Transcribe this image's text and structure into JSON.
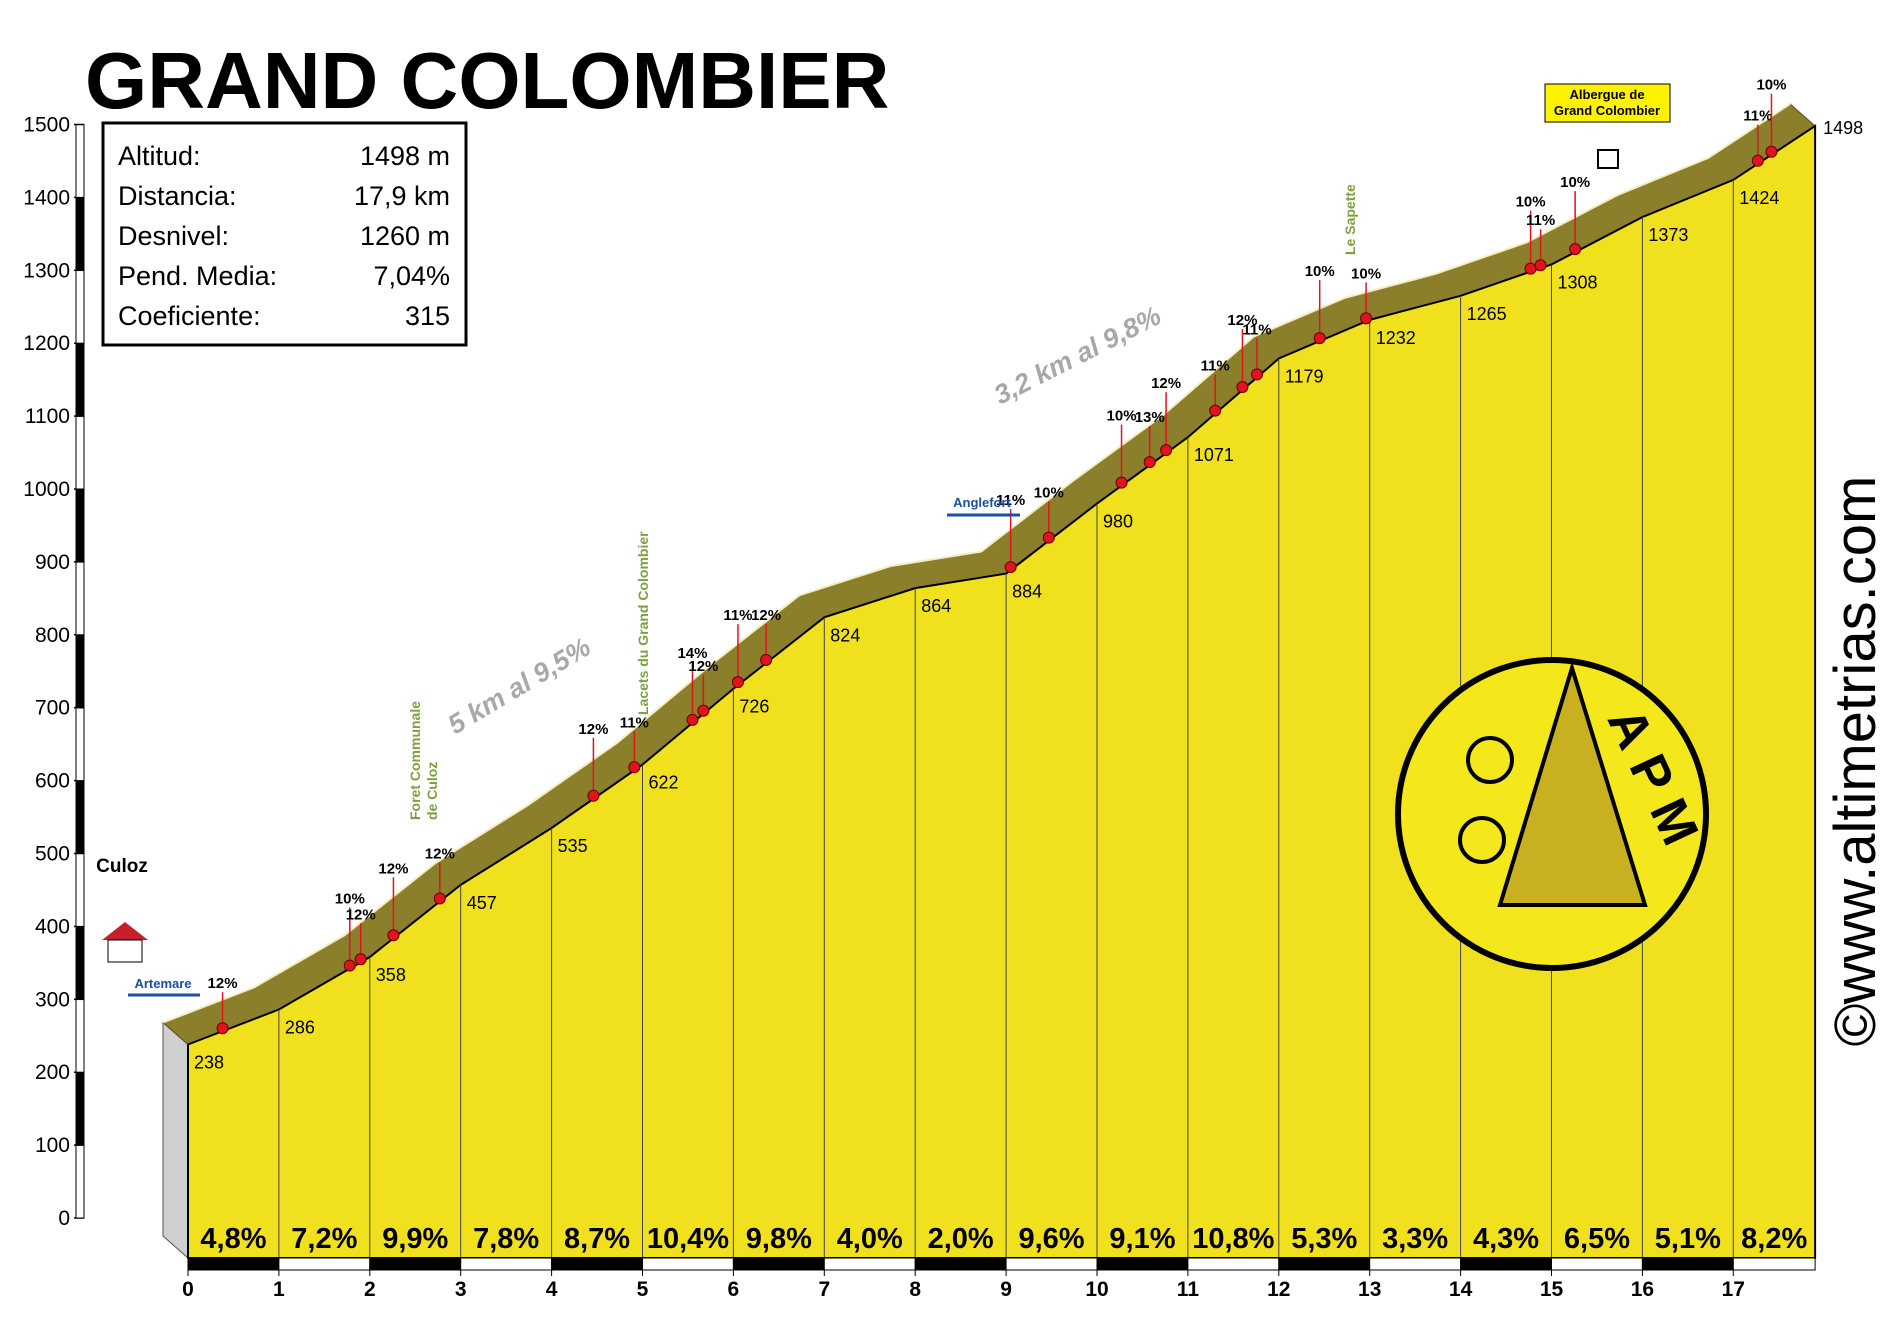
{
  "chart_data": {
    "type": "profile",
    "title": "GRAND COLOMBIER",
    "info": [
      [
        "Altitud:",
        "1498 m"
      ],
      [
        "Distancia:",
        "17,9 km"
      ],
      [
        "Desnivel:",
        "1260 m"
      ],
      [
        "Pend. Media:",
        "7,04%"
      ],
      [
        "Coeficiente:",
        "315"
      ]
    ],
    "x": [
      0,
      1,
      2,
      3,
      4,
      5,
      6,
      7,
      8,
      9,
      10,
      11,
      12,
      13,
      14,
      15,
      16,
      17,
      17.9
    ],
    "values": [
      238,
      286,
      358,
      457,
      535,
      622,
      726,
      824,
      864,
      884,
      980,
      1071,
      1179,
      1232,
      1265,
      1308,
      1373,
      1424,
      1498
    ],
    "segments": {
      "values": [
        4.8,
        7.2,
        9.9,
        7.8,
        8.7,
        10.4,
        9.8,
        4.0,
        2.0,
        9.6,
        9.1,
        10.8,
        5.3,
        3.3,
        4.3,
        6.5,
        5.1,
        8.2
      ],
      "value_labels": [
        "4,8%",
        "7,2%",
        "9,9%",
        "7,8%",
        "8,7%",
        "10,4%",
        "9,8%",
        "4,0%",
        "2,0%",
        "9,6%",
        "9,1%",
        "10,8%",
        "5,3%",
        "3,3%",
        "4,3%",
        "6,5%",
        "5,1%",
        "8,2%"
      ]
    },
    "steep": [
      {
        "x": 0.38,
        "value": 12,
        "label": "12%"
      },
      {
        "x": 1.78,
        "value": 10,
        "label": "10%"
      },
      {
        "x": 1.9,
        "value": 12,
        "label": "12%"
      },
      {
        "x": 2.26,
        "value": 12,
        "label": "12%"
      },
      {
        "x": 2.77,
        "value": 12,
        "label": "12%"
      },
      {
        "x": 4.46,
        "value": 12,
        "label": "12%"
      },
      {
        "x": 4.91,
        "value": 11,
        "label": "11%"
      },
      {
        "x": 5.55,
        "value": 14,
        "label": "14%"
      },
      {
        "x": 5.67,
        "value": 12,
        "label": "12%"
      },
      {
        "x": 6.05,
        "value": 11,
        "label": "11%"
      },
      {
        "x": 6.36,
        "value": 12,
        "label": "12%"
      },
      {
        "x": 9.05,
        "value": 11,
        "label": "11%"
      },
      {
        "x": 9.47,
        "value": 10,
        "label": "10%"
      },
      {
        "x": 10.27,
        "value": 10,
        "label": "10%"
      },
      {
        "x": 10.58,
        "value": 13,
        "label": "13%"
      },
      {
        "x": 10.76,
        "value": 12,
        "label": "12%"
      },
      {
        "x": 11.3,
        "value": 11,
        "label": "11%"
      },
      {
        "x": 11.6,
        "value": 12,
        "label": "12%"
      },
      {
        "x": 11.76,
        "value": 11,
        "label": "11%"
      },
      {
        "x": 12.45,
        "value": 10,
        "label": "10%"
      },
      {
        "x": 12.96,
        "value": 10,
        "label": "10%"
      },
      {
        "x": 14.77,
        "value": 10,
        "label": "10%"
      },
      {
        "x": 14.88,
        "value": 11,
        "label": "11%"
      },
      {
        "x": 15.26,
        "value": 10,
        "label": "10%"
      },
      {
        "x": 17.27,
        "value": 11,
        "label": "11%"
      },
      {
        "x": 17.42,
        "value": 10,
        "label": "10%"
      }
    ],
    "climbs": [
      "5 km al 9,5%",
      "3,2 km al 9,8%"
    ],
    "places": [
      "Culoz",
      "Artemare",
      "Anglefort"
    ],
    "refuge": [
      "Albergue de",
      "Grand Colombier"
    ],
    "sites": [
      [
        "Foret Communale",
        "de Culoz"
      ],
      [
        "Lacets du Grand Colombier"
      ],
      [
        "Le Sapette"
      ]
    ],
    "watermark": "www.altimetrias.com",
    "copyright": "©",
    "logo": "APM",
    "xlim": [
      0,
      17.9
    ],
    "xticks": [
      0,
      1,
      2,
      3,
      4,
      5,
      6,
      7,
      8,
      9,
      10,
      11,
      12,
      13,
      14,
      15,
      16,
      17
    ],
    "ylim": [
      0,
      1500
    ],
    "yticks": [
      0,
      100,
      200,
      300,
      400,
      500,
      600,
      700,
      800,
      900,
      1000,
      1100,
      1200,
      1300,
      1400,
      1500
    ],
    "color": "#f0e01e",
    "band_color": "#8c7f2c",
    "dot_color": "#e0141e"
  }
}
